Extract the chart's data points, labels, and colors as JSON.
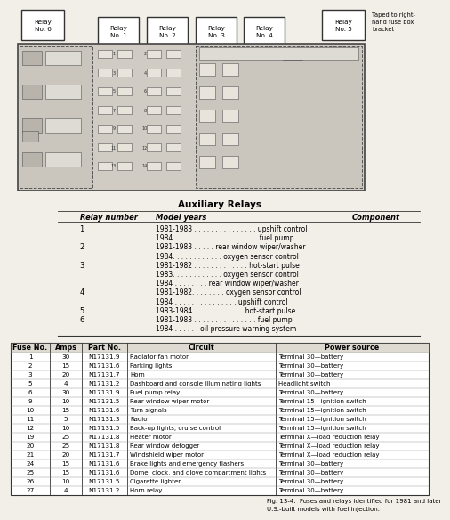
{
  "title": "Auxiliary Relays",
  "relay_header": [
    "Relay number",
    "Model years",
    "Component"
  ],
  "fuse_header": [
    "Fuse No.",
    "Amps",
    "Part No.",
    "Circuit",
    "Power source"
  ],
  "relay_data": [
    [
      "1",
      "1981-1983 . . . . . . . . . . . . . . . upshift control"
    ],
    [
      "",
      "1984 . . . . . . . . . . . . . . . . . . . . fuel pump"
    ],
    [
      "2",
      "1981-1983 . . . . . rear window wiper/washer"
    ],
    [
      "",
      "1984. . . . . . . . . . . . oxygen sensor control"
    ],
    [
      "3",
      "1981-1982 . . . . . . . . . . . . . hot-start pulse"
    ],
    [
      "",
      "1983. . . . . . . . . . . . oxygen sensor control"
    ],
    [
      "",
      "1984 . . . . . . . . rear window wiper/washer"
    ],
    [
      "4",
      "1981-1982. . . . . . . . oxygen sensor control"
    ],
    [
      "",
      "1984 . . . . . . . . . . . . . . . upshift control"
    ],
    [
      "5",
      "1983-1984 . . . . . . . . . . . . hot-start pulse"
    ],
    [
      "6",
      "1981-1983 . . . . . . . . . . . . . . . fuel pump"
    ],
    [
      "",
      "1984 . . . . . . oil pressure warning system"
    ]
  ],
  "fuse_rows": [
    [
      "1",
      "30",
      "N17131.9",
      "Radiator fan motor",
      "Terminal 30—battery"
    ],
    [
      "2",
      "15",
      "N17131.6",
      "Parking lights",
      "Terminal 30—battery"
    ],
    [
      "3",
      "20",
      "N17131.7",
      "Horn",
      "Terminal 30—battery"
    ],
    [
      "5",
      "4",
      "N17131.2",
      "Dashboard and console illuminating lights",
      "Headlight switch"
    ],
    [
      "6",
      "30",
      "N17131.9",
      "Fuel pump relay",
      "Terminal 30—battery"
    ],
    [
      "9",
      "10",
      "N17131.5",
      "Rear window wiper motor",
      "Terminal 15—ignition switch"
    ],
    [
      "10",
      "15",
      "N17131.6",
      "Turn signals",
      "Terminal 15—ignition switch"
    ],
    [
      "11",
      "5",
      "N17131.3",
      "Radio",
      "Terminal 15—ignition switch"
    ],
    [
      "12",
      "10",
      "N17131.5",
      "Back-up lights, cruise control",
      "Terminal 15—ignition switch"
    ],
    [
      "19",
      "25",
      "N17131.8",
      "Heater motor",
      "Terminal X—load reduction relay"
    ],
    [
      "20",
      "25",
      "N17131.8",
      "Rear window defogger",
      "Terminal X—load reduction relay"
    ],
    [
      "21",
      "20",
      "N17131.7",
      "Windshield wiper motor",
      "Terminal X—load reduction relay"
    ],
    [
      "24",
      "15",
      "N17131.6",
      "Brake lights and emergency flashers",
      "Terminal 30—battery"
    ],
    [
      "25",
      "15",
      "N17131.6",
      "Dome, clock, and glove compartment lights",
      "Terminal 30—battery"
    ],
    [
      "26",
      "10",
      "N17131.5",
      "Cigarette lighter",
      "Terminal 30—battery"
    ],
    [
      "27",
      "4",
      "N17131.2",
      "Horn relay",
      "Terminal 30—battery"
    ]
  ],
  "relay_labels": [
    "Relay\nNo. 6",
    "Relay\nNo. 1",
    "Relay\nNo. 2",
    "Relay\nNo. 3",
    "Relay\nNo. 4",
    "Relay\nNo. 5"
  ],
  "taped_text": "Taped to right-\nhand fuse box\nbracket",
  "caption": "Fig. 13-4.  Fuses and relays identified for 1981 and later\nU.S.-built models with fuel injection.",
  "bg_color": "#f2efe9",
  "fuse_box_fill": "#d0ccc4",
  "fuse_fill": "#e8e4dc",
  "relay_box_fill": "#ffffff",
  "table_header_fill": "#dedad2",
  "table_border": "#333333"
}
